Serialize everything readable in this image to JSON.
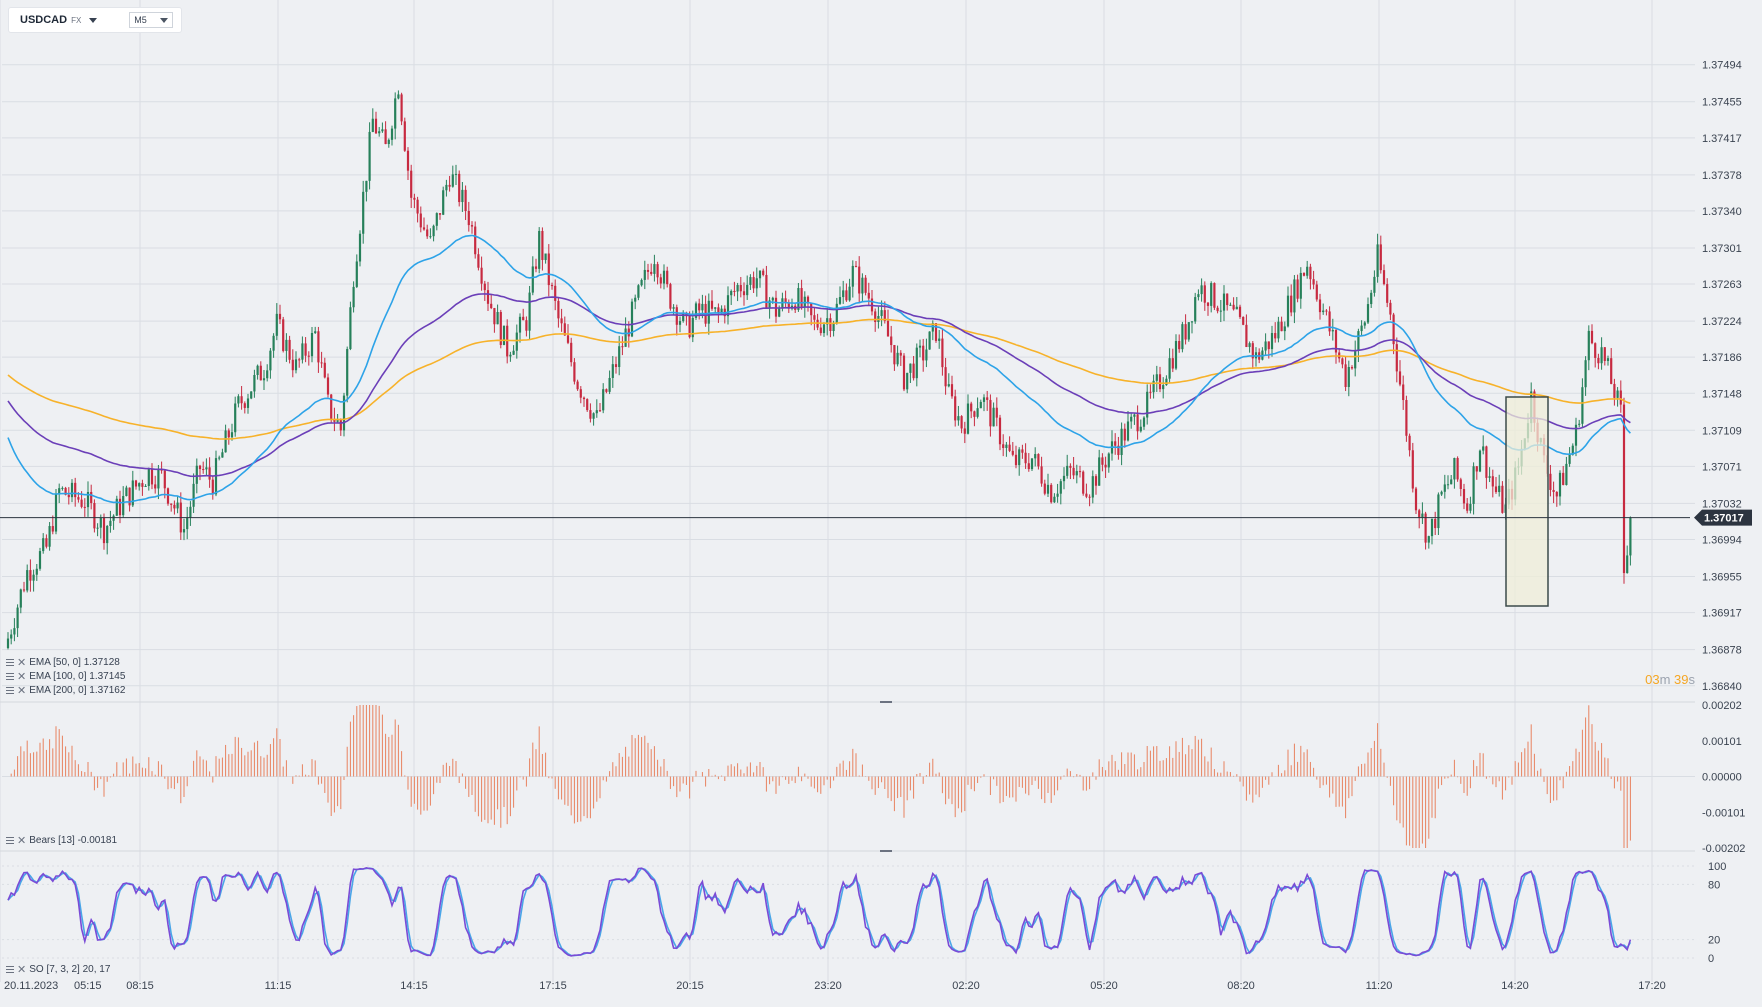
{
  "header": {
    "symbol": "USDCAD",
    "symbol_type": "FX",
    "timeframe": "M5"
  },
  "countdown": {
    "minutes": "03",
    "minutes_unit": "m",
    "seconds": "39",
    "seconds_unit": "s"
  },
  "colors": {
    "up": "#26805a",
    "down": "#c72a40",
    "ema50": "#2da3e8",
    "ema100": "#6b3fb8",
    "ema200": "#f7b22a",
    "bears": "#e8825f",
    "so_k": "#7a4bd6",
    "so_d": "#4aa6e8",
    "grid": "#d9dde3",
    "price_line": "#2c3440",
    "badge_bg": "#2c3440",
    "selection_fill": "#efedd8",
    "selection_stroke": "#3b4a4a"
  },
  "legend": {
    "ema50": "EMA [50, 0] 1.37128",
    "ema100": "EMA [100, 0] 1.37145",
    "ema200": "EMA [200, 0] 1.37162",
    "bears": "Bears [13] -0.00181",
    "so": "SO [7, 3, 2] 20, 17"
  },
  "chart_data": [
    {
      "type": "candlestick",
      "symbol": "USDCAD",
      "timeframe": "M5",
      "ylim": [
        1.36825,
        1.3752
      ],
      "y_ticks": [
        "1.37494",
        "1.37455",
        "1.37417",
        "1.37378",
        "1.37340",
        "1.37301",
        "1.37263",
        "1.37224",
        "1.37186",
        "1.37148",
        "1.37109",
        "1.37071",
        "1.37032",
        "1.36994",
        "1.36955",
        "1.36917",
        "1.36878",
        "1.36840"
      ],
      "current_price": "1.37017",
      "x_ticks": [
        "20.11.2023",
        "05:15",
        "08:15",
        "11:15",
        "14:15",
        "17:15",
        "20:15",
        "23:20",
        "02:20",
        "05:20",
        "08:20",
        "11:20",
        "14:20",
        "17:20"
      ],
      "price_waypoints": [
        [
          0,
          1.3689
        ],
        [
          6,
          1.3696
        ],
        [
          12,
          1.36985
        ],
        [
          16,
          1.37045
        ],
        [
          24,
          1.37035
        ],
        [
          30,
          1.37005
        ],
        [
          36,
          1.37035
        ],
        [
          44,
          1.37065
        ],
        [
          48,
          1.3706
        ],
        [
          55,
          1.37005
        ],
        [
          60,
          1.3707
        ],
        [
          64,
          1.37055
        ],
        [
          72,
          1.37135
        ],
        [
          80,
          1.37175
        ],
        [
          84,
          1.3722
        ],
        [
          90,
          1.37175
        ],
        [
          96,
          1.3721
        ],
        [
          100,
          1.37135
        ],
        [
          104,
          1.3711
        ],
        [
          108,
          1.37275
        ],
        [
          114,
          1.37435
        ],
        [
          118,
          1.37405
        ],
        [
          122,
          1.37475
        ],
        [
          126,
          1.37355
        ],
        [
          132,
          1.37305
        ],
        [
          138,
          1.3738
        ],
        [
          144,
          1.37335
        ],
        [
          150,
          1.3725
        ],
        [
          156,
          1.37195
        ],
        [
          162,
          1.37225
        ],
        [
          166,
          1.3731
        ],
        [
          172,
          1.37225
        ],
        [
          178,
          1.3716
        ],
        [
          184,
          1.3712
        ],
        [
          190,
          1.3718
        ],
        [
          196,
          1.3724
        ],
        [
          202,
          1.37295
        ],
        [
          206,
          1.37255
        ],
        [
          212,
          1.37215
        ],
        [
          216,
          1.37235
        ],
        [
          222,
          1.3723
        ],
        [
          228,
          1.3726
        ],
        [
          234,
          1.3727
        ],
        [
          240,
          1.37235
        ],
        [
          246,
          1.3725
        ],
        [
          252,
          1.3722
        ],
        [
          258,
          1.3723
        ],
        [
          264,
          1.37275
        ],
        [
          270,
          1.37245
        ],
        [
          276,
          1.372
        ],
        [
          280,
          1.37165
        ],
        [
          286,
          1.3719
        ],
        [
          290,
          1.37215
        ],
        [
          294,
          1.37145
        ],
        [
          298,
          1.37115
        ],
        [
          304,
          1.37145
        ],
        [
          310,
          1.37105
        ],
        [
          314,
          1.37075
        ],
        [
          320,
          1.3708
        ],
        [
          326,
          1.37045
        ],
        [
          332,
          1.37065
        ],
        [
          338,
          1.3705
        ],
        [
          344,
          1.37085
        ],
        [
          350,
          1.3711
        ],
        [
          356,
          1.37135
        ],
        [
          362,
          1.37175
        ],
        [
          368,
          1.37215
        ],
        [
          372,
          1.3726
        ],
        [
          378,
          1.37245
        ],
        [
          384,
          1.37225
        ],
        [
          390,
          1.37185
        ],
        [
          396,
          1.3721
        ],
        [
          402,
          1.37255
        ],
        [
          406,
          1.37285
        ],
        [
          410,
          1.37245
        ],
        [
          414,
          1.37205
        ],
        [
          418,
          1.37165
        ],
        [
          424,
          1.37225
        ],
        [
          428,
          1.3729
        ],
        [
          432,
          1.3723
        ],
        [
          436,
          1.37135
        ],
        [
          440,
          1.37035
        ],
        [
          444,
          1.36995
        ],
        [
          448,
          1.3704
        ],
        [
          452,
          1.37065
        ],
        [
          456,
          1.3703
        ],
        [
          460,
          1.37095
        ],
        [
          464,
          1.3705
        ],
        [
          468,
          1.37025
        ],
        [
          472,
          1.3707
        ],
        [
          476,
          1.37145
        ],
        [
          480,
          1.37075
        ],
        [
          484,
          1.3704
        ],
        [
          490,
          1.37105
        ],
        [
          494,
          1.37205
        ],
        [
          498,
          1.3719
        ],
        [
          502,
          1.3715
        ],
        [
          504,
          1.37125
        ],
        [
          505,
          1.3696
        ],
        [
          507,
          1.37017
        ]
      ],
      "ema50_last": 1.37128,
      "ema100_last": 1.37145,
      "ema200_last": 1.37162
    },
    {
      "type": "bar",
      "name": "Bears [13]",
      "last_value": -0.00181,
      "ylim": [
        -0.00202,
        0.00202
      ],
      "y_ticks": [
        "0.00202",
        "0.00101",
        "0.00000",
        "-0.00101",
        "-0.00202"
      ]
    },
    {
      "type": "line",
      "name": "SO [7, 3, 2]",
      "last_values": [
        20,
        17
      ],
      "ylim": [
        0,
        100
      ],
      "y_ticks": [
        "100",
        "80",
        "20",
        "0"
      ]
    }
  ]
}
